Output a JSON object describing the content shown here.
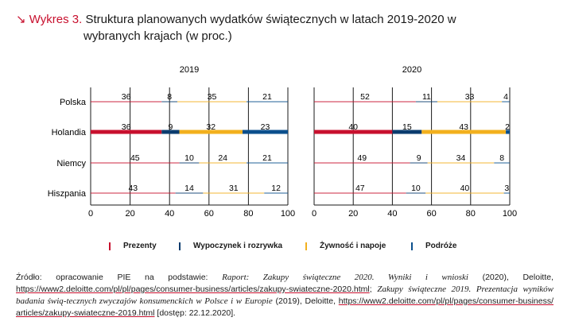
{
  "header": {
    "arrow": "↘",
    "lead": "Wykres 3.",
    "title_line1": "Struktura planowanych wydatków świątecznych w latach 2019-2020 w",
    "title_line2": "wybranych krajach (w proc.)"
  },
  "legend": {
    "items": [
      "Prezenty",
      "Wypoczynek i rozrywka",
      "Żywność i napoje",
      "Podróże"
    ]
  },
  "source": {
    "prefix": "Źródło: opracowanie PIE na podstawie: ",
    "italic1": "Raport: Zakupy świąteczne 2020. Wyniki i wnioski",
    "mid1": " (2020), Deloitte, ",
    "link1": "https://www2.deloitte.com/pl/pl/pages/consumer-business/articles/zakupy-swiateczne-2020.html",
    "sep": "; ",
    "italic2": "Zakupy świąteczne 2019. Prezentacja wyników badania świą-tecznych zwyczajów konsumenckich w Polsce i w Europie",
    "mid2": " (2019), Deloitte, ",
    "link2": "https://www2.deloitte.com/pl/pl/pages/consumer-business/ articles/zakupy-swiateczne-2019.html",
    "suffix": " [dostęp: 22.12.2020]."
  },
  "colors": {
    "Prezenty": "#c8102e",
    "Wypoczynek i rozrywka": "#0b3c6e",
    "Żywność i napoje": "#f2b01e",
    "Podróże": "#0b4f8c",
    "axis": "#1a1a1a"
  },
  "chart_data": [
    {
      "type": "bar",
      "orientation": "horizontal",
      "stacked": true,
      "title": "2019",
      "categories": [
        "Polska",
        "Holandia",
        "Niemcy",
        "Hiszpania"
      ],
      "series": [
        {
          "name": "Prezenty",
          "values": [
            36,
            36,
            45,
            43
          ]
        },
        {
          "name": "Wypoczynek i rozrywka",
          "values": [
            8,
            9,
            10,
            14
          ]
        },
        {
          "name": "Żywność i napoje",
          "values": [
            35,
            32,
            24,
            31
          ]
        },
        {
          "name": "Podróże",
          "values": [
            21,
            23,
            21,
            12
          ]
        }
      ],
      "xlim": [
        0,
        100
      ],
      "xticks": [
        "0",
        "20",
        "40",
        "60",
        "80",
        "100"
      ],
      "highlighted_category": "Holandia"
    },
    {
      "type": "bar",
      "orientation": "horizontal",
      "stacked": true,
      "title": "2020",
      "categories": [
        "Polska",
        "Holandia",
        "Niemcy",
        "Hiszpania"
      ],
      "series": [
        {
          "name": "Prezenty",
          "values": [
            52,
            40,
            49,
            47
          ]
        },
        {
          "name": "Wypoczynek i rozrywka",
          "values": [
            11,
            15,
            9,
            10
          ]
        },
        {
          "name": "Żywność i napoje",
          "values": [
            33,
            43,
            34,
            40
          ]
        },
        {
          "name": "Podróże",
          "values": [
            4,
            2,
            8,
            3
          ]
        }
      ],
      "xlim": [
        0,
        100
      ],
      "xticks": [
        "0",
        "20",
        "40",
        "60",
        "80",
        "100"
      ],
      "highlighted_category": "Holandia"
    }
  ]
}
